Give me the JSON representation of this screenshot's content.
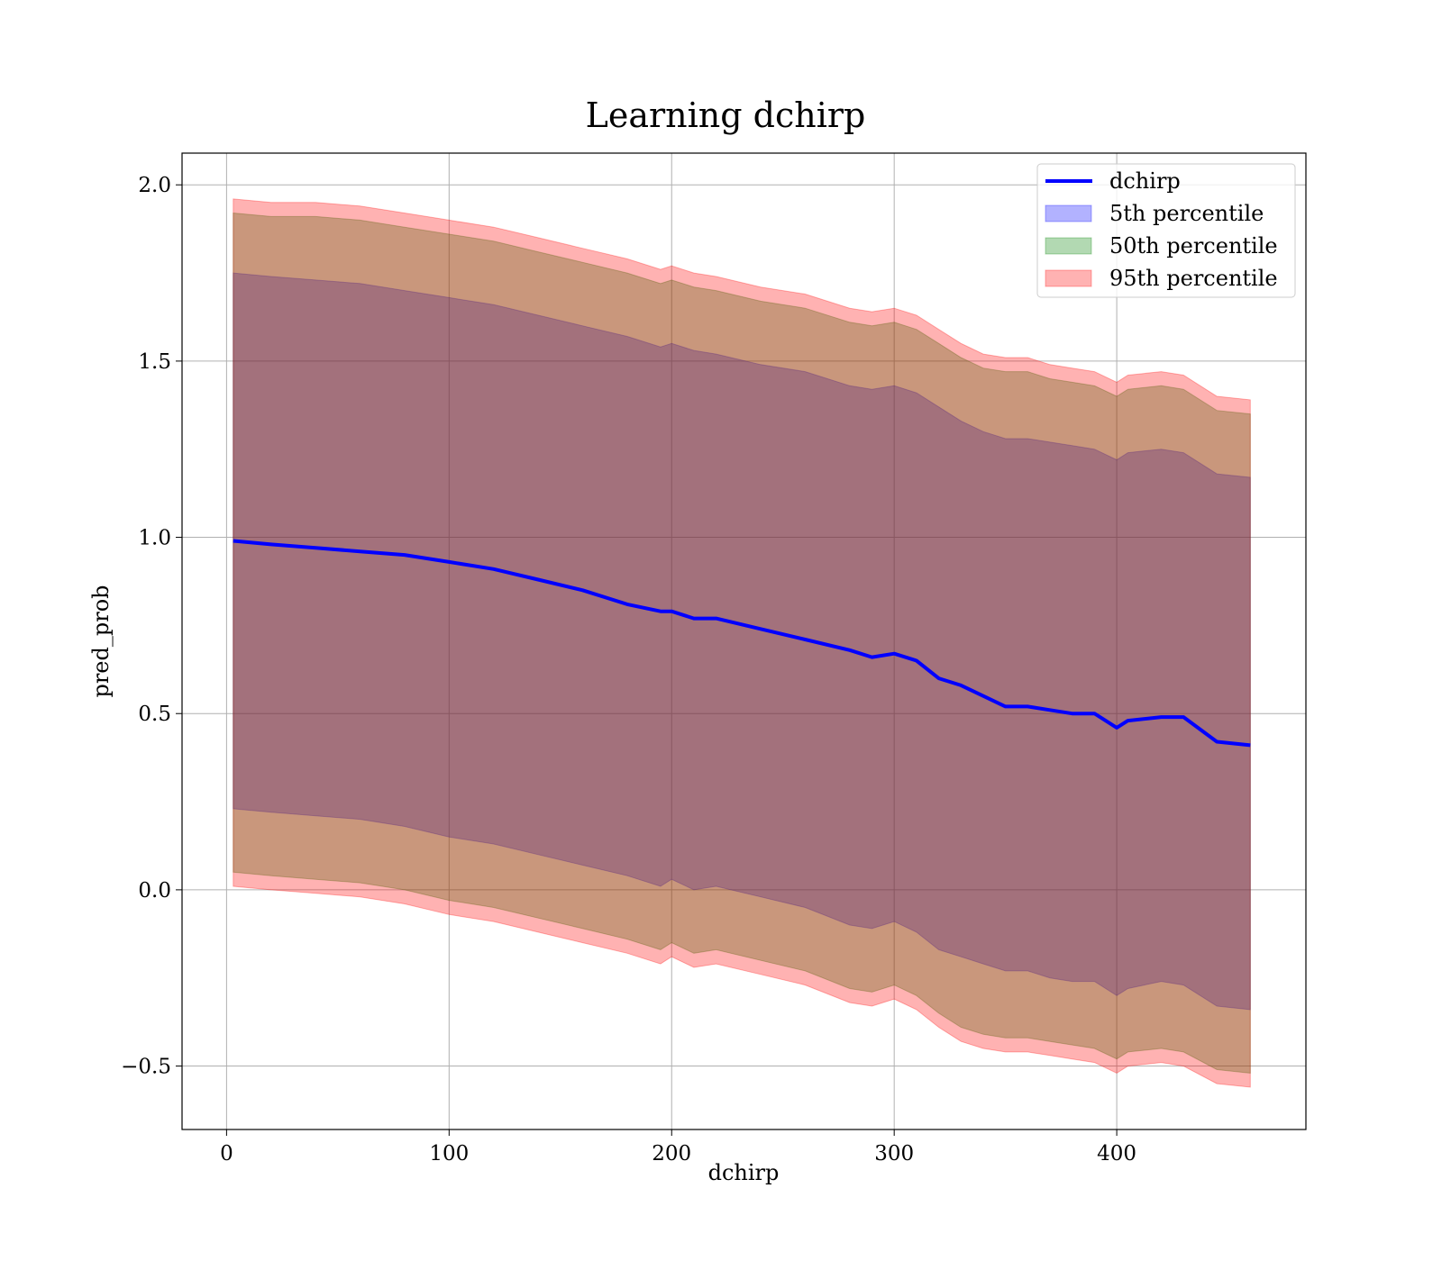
{
  "chart_data": {
    "type": "area",
    "title": "Learning dchirp",
    "xlabel": "dchirp",
    "ylabel": "pred_prob",
    "xlim": [
      -20,
      485
    ],
    "ylim": [
      -0.68,
      2.09
    ],
    "xticks": [
      0,
      100,
      200,
      300,
      400
    ],
    "xtick_labels": [
      "0",
      "100",
      "200",
      "300",
      "400"
    ],
    "yticks": [
      -0.5,
      0.0,
      0.5,
      1.0,
      1.5,
      2.0
    ],
    "ytick_labels": [
      "−0.5",
      "0.0",
      "0.5",
      "1.0",
      "1.5",
      "2.0"
    ],
    "grid": true,
    "legend_position": "top-right",
    "legend": [
      "dchirp",
      "5th percentile",
      "50th percentile",
      "95th percentile"
    ],
    "x": [
      3,
      20,
      40,
      60,
      80,
      100,
      120,
      140,
      160,
      180,
      195,
      200,
      210,
      220,
      240,
      260,
      280,
      290,
      300,
      310,
      320,
      330,
      340,
      350,
      360,
      370,
      380,
      390,
      400,
      405,
      420,
      430,
      445,
      460
    ],
    "series": [
      {
        "name": "dchirp",
        "kind": "line",
        "color": "#0000ff",
        "values": [
          0.99,
          0.98,
          0.97,
          0.96,
          0.95,
          0.93,
          0.91,
          0.88,
          0.85,
          0.81,
          0.79,
          0.79,
          0.77,
          0.77,
          0.74,
          0.71,
          0.68,
          0.66,
          0.67,
          0.65,
          0.6,
          0.58,
          0.55,
          0.52,
          0.52,
          0.51,
          0.5,
          0.5,
          0.46,
          0.48,
          0.49,
          0.49,
          0.42,
          0.41
        ]
      },
      {
        "name": "5th percentile",
        "kind": "band",
        "color": "#0000ff",
        "lower": [
          0.23,
          0.22,
          0.21,
          0.2,
          0.18,
          0.15,
          0.13,
          0.1,
          0.07,
          0.04,
          0.01,
          0.03,
          0.0,
          0.01,
          -0.02,
          -0.05,
          -0.1,
          -0.11,
          -0.09,
          -0.12,
          -0.17,
          -0.19,
          -0.21,
          -0.23,
          -0.23,
          -0.25,
          -0.26,
          -0.26,
          -0.3,
          -0.28,
          -0.26,
          -0.27,
          -0.33,
          -0.34
        ],
        "upper": [
          1.75,
          1.74,
          1.73,
          1.72,
          1.7,
          1.68,
          1.66,
          1.63,
          1.6,
          1.57,
          1.54,
          1.55,
          1.53,
          1.52,
          1.49,
          1.47,
          1.43,
          1.42,
          1.43,
          1.41,
          1.37,
          1.33,
          1.3,
          1.28,
          1.28,
          1.27,
          1.26,
          1.25,
          1.22,
          1.24,
          1.25,
          1.24,
          1.18,
          1.17
        ]
      },
      {
        "name": "50th percentile",
        "kind": "band",
        "color": "#008000",
        "lower": [
          0.05,
          0.04,
          0.03,
          0.02,
          0.0,
          -0.03,
          -0.05,
          -0.08,
          -0.11,
          -0.14,
          -0.17,
          -0.15,
          -0.18,
          -0.17,
          -0.2,
          -0.23,
          -0.28,
          -0.29,
          -0.27,
          -0.3,
          -0.35,
          -0.39,
          -0.41,
          -0.42,
          -0.42,
          -0.43,
          -0.44,
          -0.45,
          -0.48,
          -0.46,
          -0.45,
          -0.46,
          -0.51,
          -0.52
        ],
        "upper": [
          1.92,
          1.91,
          1.91,
          1.9,
          1.88,
          1.86,
          1.84,
          1.81,
          1.78,
          1.75,
          1.72,
          1.73,
          1.71,
          1.7,
          1.67,
          1.65,
          1.61,
          1.6,
          1.61,
          1.59,
          1.55,
          1.51,
          1.48,
          1.47,
          1.47,
          1.45,
          1.44,
          1.43,
          1.4,
          1.42,
          1.43,
          1.42,
          1.36,
          1.35
        ]
      },
      {
        "name": "95th percentile",
        "kind": "band",
        "color": "#ff0000",
        "lower": [
          0.01,
          0.0,
          -0.01,
          -0.02,
          -0.04,
          -0.07,
          -0.09,
          -0.12,
          -0.15,
          -0.18,
          -0.21,
          -0.19,
          -0.22,
          -0.21,
          -0.24,
          -0.27,
          -0.32,
          -0.33,
          -0.31,
          -0.34,
          -0.39,
          -0.43,
          -0.45,
          -0.46,
          -0.46,
          -0.47,
          -0.48,
          -0.49,
          -0.52,
          -0.5,
          -0.49,
          -0.5,
          -0.55,
          -0.56
        ],
        "upper": [
          1.96,
          1.95,
          1.95,
          1.94,
          1.92,
          1.9,
          1.88,
          1.85,
          1.82,
          1.79,
          1.76,
          1.77,
          1.75,
          1.74,
          1.71,
          1.69,
          1.65,
          1.64,
          1.65,
          1.63,
          1.59,
          1.55,
          1.52,
          1.51,
          1.51,
          1.49,
          1.48,
          1.47,
          1.44,
          1.46,
          1.47,
          1.46,
          1.4,
          1.39
        ]
      }
    ]
  }
}
